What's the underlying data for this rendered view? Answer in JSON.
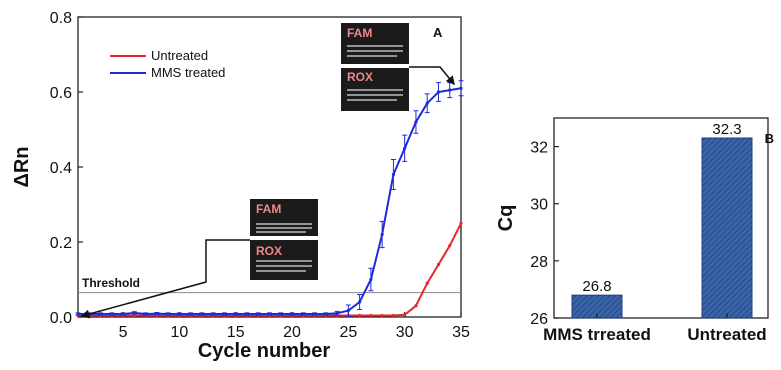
{
  "chart_data": [
    {
      "type": "line",
      "panel": "A",
      "xlabel": "Cycle number",
      "ylabel": "ΔRn",
      "xlim": [
        1,
        35
      ],
      "ylim": [
        0.0,
        0.8
      ],
      "xticks": [
        "5",
        "10",
        "15",
        "20",
        "25",
        "30",
        "35"
      ],
      "yticks": [
        "0.0",
        "0.2",
        "0.4",
        "0.6",
        "0.8"
      ],
      "threshold": {
        "label": "Threshold",
        "value": 0.065
      },
      "legend_position": "top-left",
      "gel_labels": [
        "FAM",
        "ROX"
      ],
      "series": [
        {
          "name": "Untreated",
          "color": "#e8262b",
          "x": [
            1,
            2,
            3,
            4,
            5,
            6,
            7,
            8,
            9,
            10,
            11,
            12,
            13,
            14,
            15,
            16,
            17,
            18,
            19,
            20,
            21,
            22,
            23,
            24,
            25,
            26,
            27,
            28,
            29,
            30,
            31,
            32,
            33,
            34,
            35
          ],
          "y": [
            0.004,
            0.004,
            0.004,
            0.004,
            0.004,
            0.004,
            0.004,
            0.004,
            0.004,
            0.004,
            0.004,
            0.004,
            0.004,
            0.004,
            0.004,
            0.004,
            0.004,
            0.004,
            0.004,
            0.004,
            0.004,
            0.004,
            0.004,
            0.004,
            0.004,
            0.004,
            0.004,
            0.004,
            0.004,
            0.006,
            0.03,
            0.09,
            0.14,
            0.19,
            0.25
          ]
        },
        {
          "name": "MMS treated",
          "color": "#1f2bd6",
          "x": [
            1,
            2,
            3,
            4,
            5,
            6,
            7,
            8,
            9,
            10,
            11,
            12,
            13,
            14,
            15,
            16,
            17,
            18,
            19,
            20,
            21,
            22,
            23,
            24,
            25,
            26,
            27,
            28,
            29,
            30,
            31,
            32,
            33,
            34,
            35
          ],
          "y": [
            0.008,
            0.008,
            0.008,
            0.008,
            0.008,
            0.011,
            0.008,
            0.009,
            0.008,
            0.008,
            0.008,
            0.008,
            0.008,
            0.008,
            0.008,
            0.008,
            0.008,
            0.008,
            0.008,
            0.008,
            0.008,
            0.008,
            0.008,
            0.01,
            0.017,
            0.04,
            0.1,
            0.22,
            0.38,
            0.45,
            0.52,
            0.57,
            0.6,
            0.605,
            0.61
          ],
          "err": [
            0.003,
            0.003,
            0.003,
            0.003,
            0.003,
            0.003,
            0.003,
            0.003,
            0.003,
            0.003,
            0.003,
            0.003,
            0.003,
            0.003,
            0.003,
            0.003,
            0.003,
            0.003,
            0.003,
            0.003,
            0.003,
            0.003,
            0.003,
            0.005,
            0.015,
            0.02,
            0.03,
            0.035,
            0.04,
            0.035,
            0.03,
            0.025,
            0.025,
            0.02,
            0.02
          ]
        }
      ]
    },
    {
      "type": "bar",
      "panel": "B",
      "xlabel": "",
      "ylabel": "Cq",
      "ylim": [
        26,
        33
      ],
      "yticks": [
        "26",
        "28",
        "30",
        "32"
      ],
      "categories": [
        "MMS trreated",
        "Untreated"
      ],
      "values": [
        26.8,
        32.3
      ],
      "data_labels": [
        "26.8",
        "32.3"
      ],
      "bar_color": "#2f5597"
    }
  ]
}
